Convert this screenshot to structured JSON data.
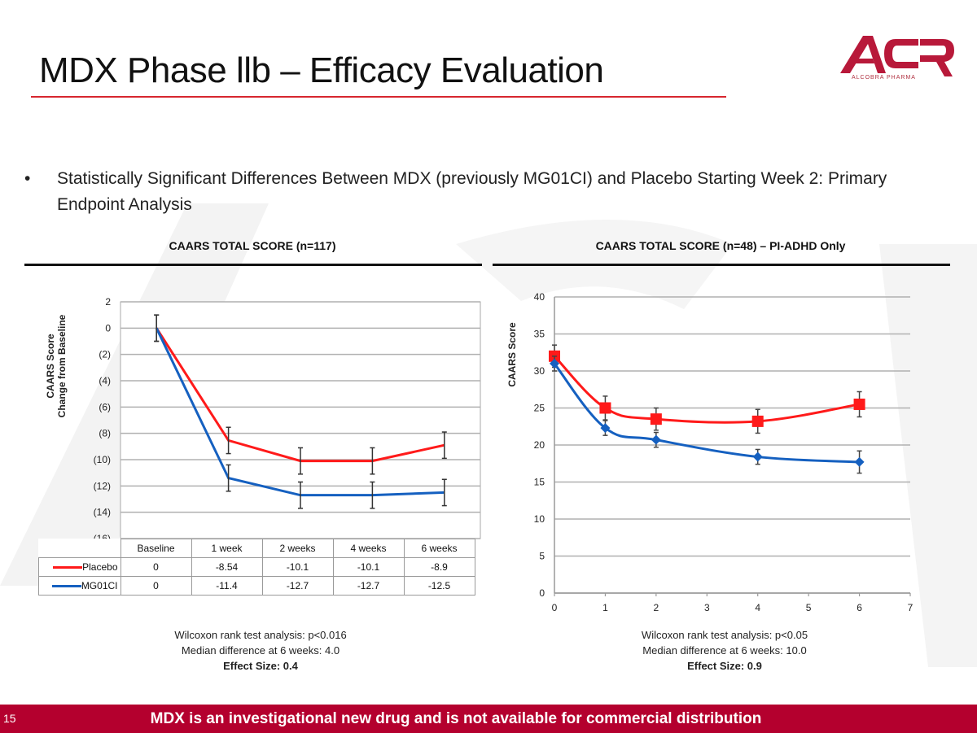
{
  "slide": {
    "title": "MDX Phase llb – Efficacy Evaluation",
    "bullet": "Statistically Significant Differences Between MDX (previously MG01CI) and Placebo Starting Week 2: Primary Endpoint Analysis",
    "bullet_symbol": "•",
    "logo_text": "ACR",
    "logo_subtext": "ALCOBRA PHARMA",
    "page_number": "15",
    "footer_text": "MDX is an investigational new drug and is not available for commercial distribution",
    "colors": {
      "accent": "#d7262f",
      "footer": "#b4002e",
      "placebo": "#ff1a1a",
      "drug": "#1560c0",
      "logo": "#b8193a"
    }
  },
  "left_panel": {
    "title": "CAARS TOTAL SCORE (n=117)",
    "notes": [
      "Wilcoxon rank test analysis: p<0.016",
      "Median difference at 6 weeks: 4.0",
      "Effect Size: 0.4"
    ],
    "table": {
      "headers": [
        "Baseline",
        "1 week",
        "2 weeks",
        "4 weeks",
        "6 weeks"
      ],
      "rows": [
        {
          "label": "Placebo",
          "values": [
            "0",
            "-8.54",
            "-10.1",
            "-10.1",
            "-8.9"
          ]
        },
        {
          "label": "MG01CI",
          "values": [
            "0",
            "-11.4",
            "-12.7",
            "-12.7",
            "-12.5"
          ]
        }
      ]
    }
  },
  "right_panel": {
    "title": "CAARS TOTAL SCORE (n=48) – PI-ADHD Only",
    "notes": [
      "Wilcoxon rank test analysis: p<0.05",
      "Median difference at 6 weeks: 10.0",
      "Effect Size: 0.9"
    ]
  },
  "chart_data": [
    {
      "type": "line",
      "title": "CAARS TOTAL SCORE (n=117)",
      "xlabel": "",
      "ylabel": "CAARS Score Change from Baseline",
      "categories": [
        "Baseline",
        "1 week",
        "2 weeks",
        "4 weeks",
        "6 weeks"
      ],
      "ylim": [
        -16,
        2
      ],
      "yticks": [
        2,
        0,
        -2,
        -4,
        -6,
        -8,
        -10,
        -12,
        -14,
        -16
      ],
      "ytick_labels": [
        "2",
        "0",
        "(2)",
        "(4)",
        "(6)",
        "(8)",
        "(10)",
        "(12)",
        "(14)",
        "(16)"
      ],
      "grid": true,
      "legend": "data-table",
      "series": [
        {
          "name": "Placebo",
          "color": "#ff1a1a",
          "values": [
            0,
            -8.54,
            -10.1,
            -10.1,
            -8.9
          ],
          "error": [
            1,
            1,
            1,
            1,
            1
          ]
        },
        {
          "name": "MG01CI",
          "color": "#1560c0",
          "values": [
            0,
            -11.4,
            -12.7,
            -12.7,
            -12.5
          ],
          "error": [
            1,
            1,
            1,
            1,
            1
          ]
        }
      ]
    },
    {
      "type": "line",
      "title": "CAARS TOTAL SCORE (n=48) – PI-ADHD Only",
      "xlabel": "",
      "ylabel": "CAARS Score",
      "x": [
        0,
        1,
        2,
        4,
        6
      ],
      "xlim": [
        0,
        7
      ],
      "xticks": [
        0,
        1,
        2,
        3,
        4,
        5,
        6,
        7
      ],
      "ylim": [
        0,
        40
      ],
      "yticks": [
        0,
        5,
        10,
        15,
        20,
        25,
        30,
        35,
        40
      ],
      "grid": true,
      "legend": "none",
      "series": [
        {
          "name": "Placebo",
          "color": "#ff1a1a",
          "marker": "square",
          "values": [
            32,
            25,
            23.5,
            23.2,
            25.5
          ],
          "error": [
            1.5,
            1.6,
            1.5,
            1.6,
            1.7
          ]
        },
        {
          "name": "MDX",
          "color": "#1560c0",
          "marker": "diamond",
          "values": [
            31,
            22.3,
            20.7,
            18.4,
            17.7
          ],
          "error": [
            1,
            1,
            1,
            1,
            1.5
          ]
        }
      ]
    }
  ]
}
